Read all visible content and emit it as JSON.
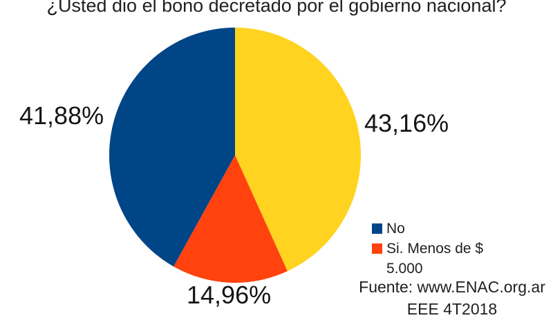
{
  "header": {
    "title": "¿Usted dio el bono decretado por el gobierno nacional?"
  },
  "chart_data": {
    "type": "pie",
    "title": "¿Usted dio el bono decretado por el gobierno nacional?",
    "direction": "clockwise",
    "start_angle_deg": 0,
    "legend_position": "right-bottom",
    "slices": [
      {
        "name": "yellow",
        "value": 43.16,
        "label": "43,16%",
        "color": "#FFD320"
      },
      {
        "name": "orange",
        "value": 14.96,
        "label": "14,96%",
        "color": "#FF420E",
        "legend_label": "Si. Menos de $ 5.000"
      },
      {
        "name": "blue",
        "value": 41.88,
        "label": "41,88%",
        "color": "#004586",
        "legend_label": "No"
      }
    ]
  },
  "legend": {
    "items": [
      {
        "label": "No",
        "color": "#004586"
      },
      {
        "label": "Si. Menos de $ 5.000",
        "color": "#FF420E"
      }
    ]
  },
  "source": {
    "line1": "Fuente: www.ENAC.org.ar",
    "line2": "EEE 4T2018"
  },
  "colors": {
    "background": "#ffffff",
    "text": "#1f1f1f",
    "blue": "#004586",
    "orange": "#FF420E",
    "yellow": "#FFD320"
  }
}
